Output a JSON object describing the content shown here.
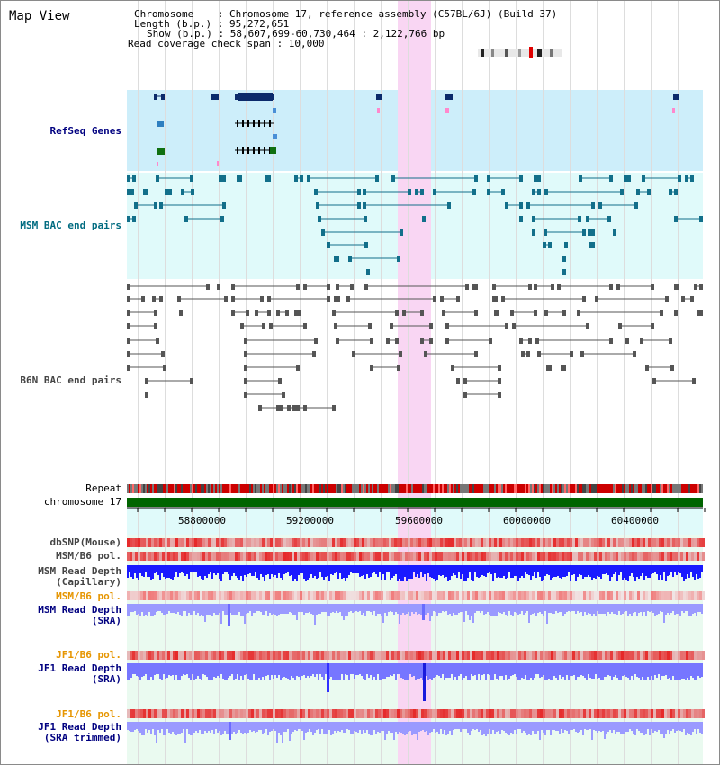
{
  "header": {
    "title": "Map View",
    "chromosome_line": "Chromosome    : Chromosome 17, reference assembly (C57BL/6J) (Build 37)",
    "length_line": "Length (b.p.) : 95,272,651",
    "show_line": "Show (b.p.) : 58,607,699-60,730,464 : 2,122,766 bp",
    "coverage_line": "Read coverage check span : 10,000"
  },
  "tracks": {
    "refseq": "RefSeq Genes",
    "msm_bac": "MSM BAC end pairs",
    "b6n_bac": "B6N BAC end pairs",
    "repeat": "Repeat",
    "chromosome": "chromosome 17",
    "dbsnp": "dbSNP(Mouse)",
    "msm_b6_pol_1": "MSM/B6 pol.",
    "msm_read_depth_cap_1": "MSM Read Depth",
    "msm_read_depth_cap_2": "(Capillary)",
    "msm_b6_pol_2": "MSM/B6 pol.",
    "msm_read_depth_sra_1": "MSM Read Depth",
    "msm_read_depth_sra_2": "(SRA)",
    "jf1_b6_pol_1": "JF1/B6 pol.",
    "jf1_read_depth_sra_1": "JF1 Read Depth",
    "jf1_read_depth_sra_2": "(SRA)",
    "jf1_b6_pol_2": "JF1/B6 pol.",
    "jf1_read_depth_trim_1": "JF1 Read Depth",
    "jf1_read_depth_trim_2": "(SRA trimmed)"
  },
  "axis": {
    "ticks": [
      "58800000",
      "59200000",
      "59600000",
      "60000000",
      "60400000"
    ]
  },
  "colors": {
    "highlight": "#f9d6f3",
    "refseq_bg": "#cdeefa",
    "bac_bg": "#e0fafa",
    "msm_feature": "#126f8a",
    "b6n_feature": "#555555",
    "chromosome_bar": "#006400",
    "depth_blue": "#1a1aff",
    "depth_light": "#9a9aff"
  }
}
